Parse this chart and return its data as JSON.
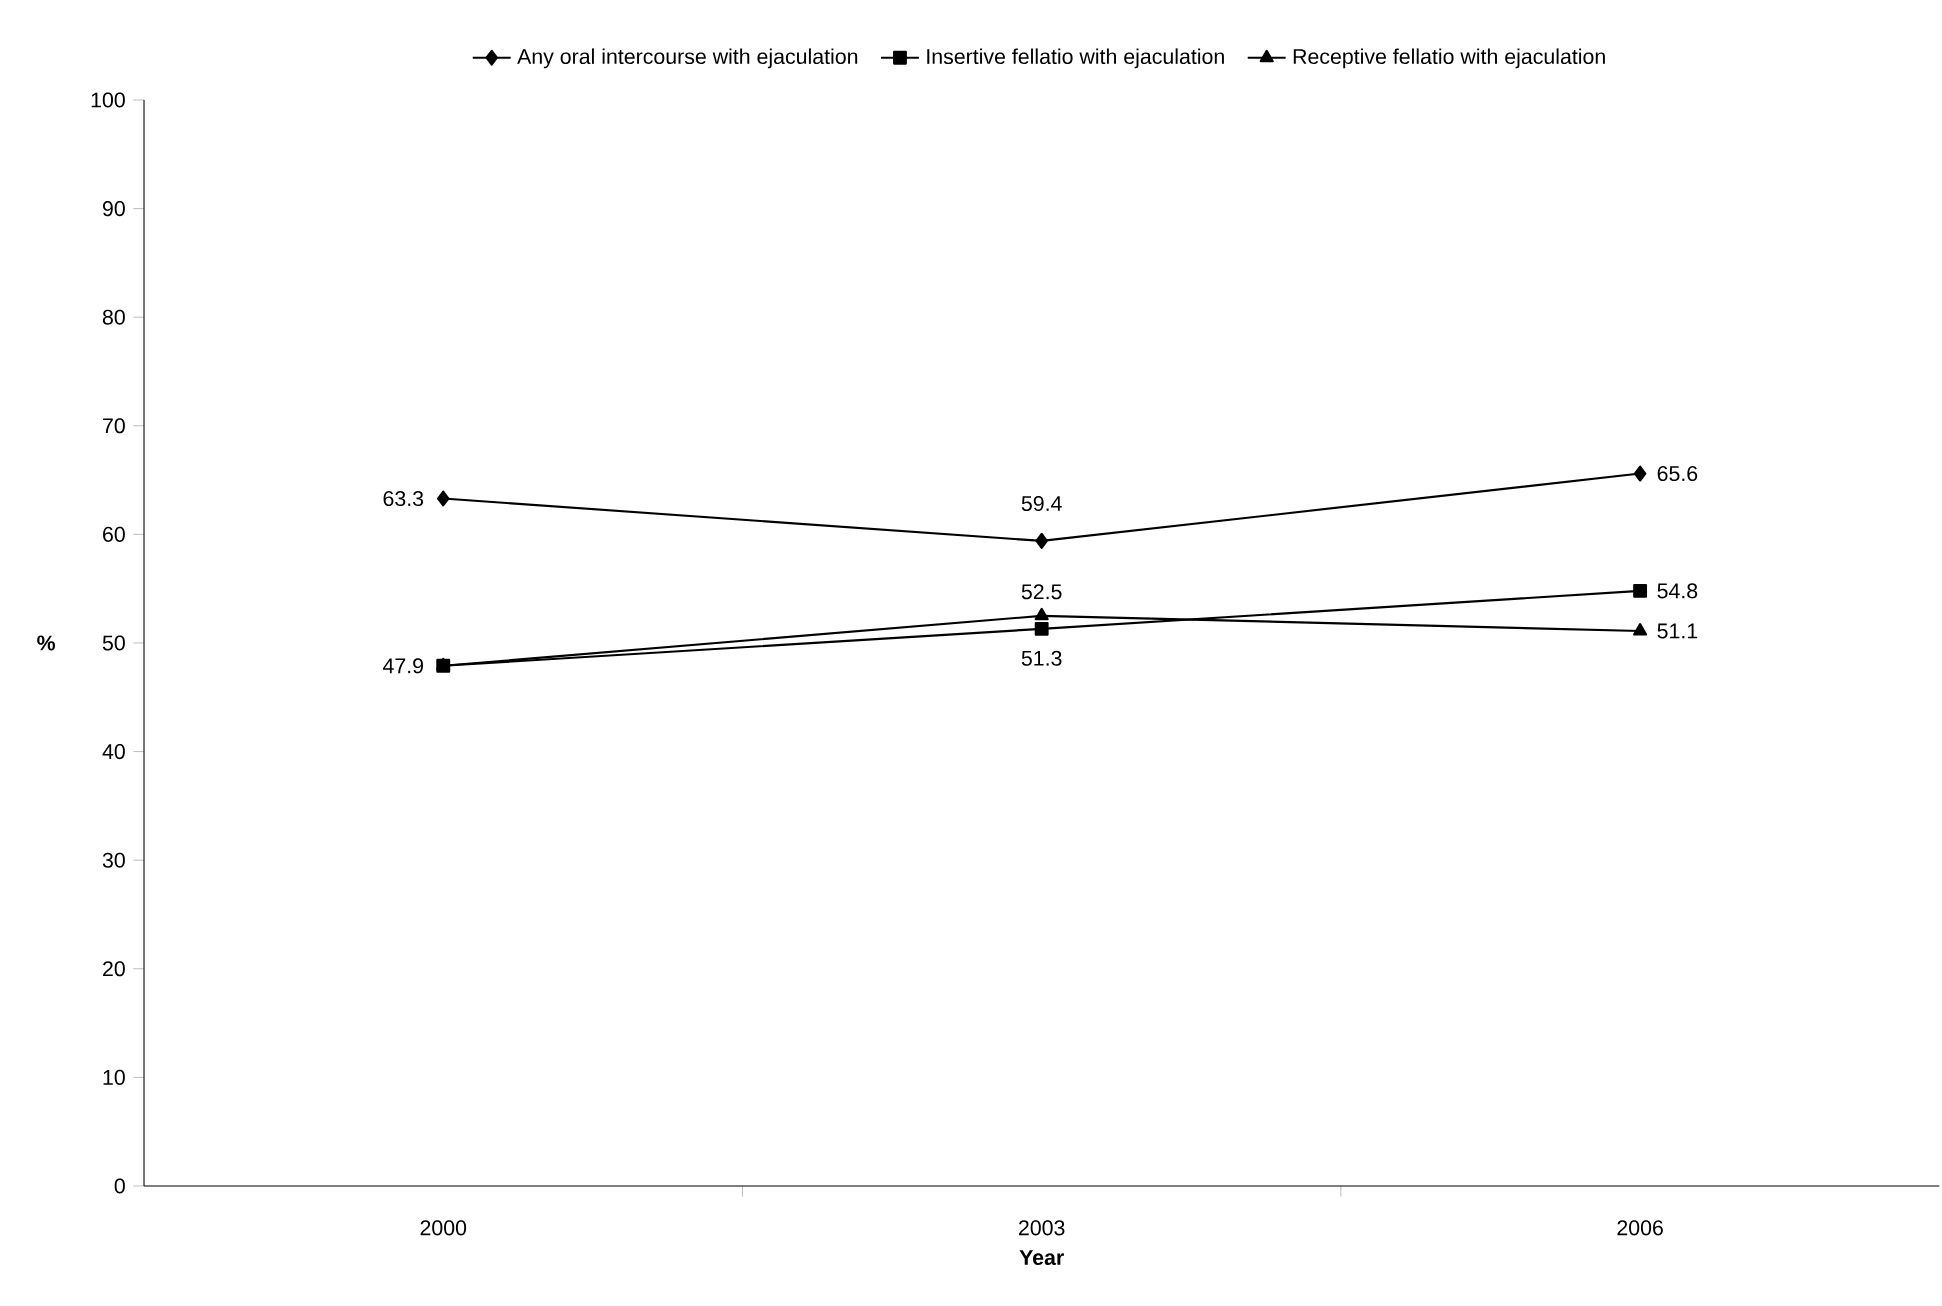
{
  "chart_data": {
    "type": "line",
    "xlabel": "Year",
    "ylabel": "%",
    "categories": [
      "2000",
      "2003",
      "2006"
    ],
    "series": [
      {
        "name": "Any oral intercourse with ejaculation",
        "color": "#000000",
        "marker": "diamond",
        "values": [
          63.3,
          59.4,
          65.6
        ],
        "value_labels": [
          "63.3",
          "59.4",
          "65.6"
        ]
      },
      {
        "name": "Insertive fellatio with ejaculation",
        "color": "#000000",
        "marker": "square",
        "values": [
          47.9,
          51.3,
          54.8
        ],
        "value_labels": [
          "47.9",
          "51.3",
          "54.8"
        ]
      },
      {
        "name": "Receptive fellatio with ejaculation",
        "color": "#000000",
        "marker": "triangle",
        "values": [
          47.9,
          52.5,
          51.1
        ],
        "value_labels": [
          null,
          "52.5",
          "51.1"
        ]
      }
    ],
    "ylim": [
      0,
      100
    ],
    "yticks": [
      0,
      10,
      20,
      30,
      40,
      50,
      60,
      70,
      80,
      90,
      100
    ],
    "legend": "top"
  }
}
